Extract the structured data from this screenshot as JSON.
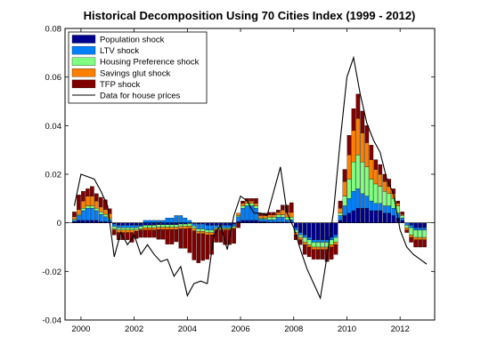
{
  "chart_data": {
    "type": "bar",
    "stacked": true,
    "title": "Historical Decomposition Using 70 Cities Index (1999 - 2012)",
    "xlabel": "",
    "ylabel": "",
    "xlim": [
      1999.4,
      2013.3
    ],
    "ylim": [
      -0.04,
      0.08
    ],
    "xticks": [
      2000,
      2002,
      2004,
      2006,
      2008,
      2010,
      2012
    ],
    "xtick_labels": [
      "2000",
      "2002",
      "2004",
      "2006",
      "2008",
      "2010",
      "2012"
    ],
    "yticks": [
      -0.04,
      -0.02,
      0,
      0.02,
      0.04,
      0.06,
      0.08
    ],
    "ytick_labels": [
      "-0.04",
      "-0.02",
      "0",
      "0.02",
      "0.04",
      "0.06",
      "0.08"
    ],
    "legend_position": "top-left",
    "x": [
      1999.75,
      1999.917,
      2000.083,
      2000.25,
      2000.417,
      2000.583,
      2000.75,
      2000.917,
      2001.083,
      2001.25,
      2001.417,
      2001.583,
      2001.75,
      2001.917,
      2002.083,
      2002.25,
      2002.417,
      2002.583,
      2002.75,
      2002.917,
      2003.083,
      2003.25,
      2003.417,
      2003.583,
      2003.75,
      2003.917,
      2004.083,
      2004.25,
      2004.417,
      2004.583,
      2004.75,
      2004.917,
      2005.083,
      2005.25,
      2005.417,
      2005.583,
      2005.75,
      2005.917,
      2006.083,
      2006.25,
      2006.417,
      2006.583,
      2006.75,
      2006.917,
      2007.083,
      2007.25,
      2007.417,
      2007.583,
      2007.75,
      2007.917,
      2008.083,
      2008.25,
      2008.417,
      2008.583,
      2008.75,
      2008.917,
      2009.083,
      2009.25,
      2009.417,
      2009.583,
      2009.75,
      2009.917,
      2010.083,
      2010.25,
      2010.417,
      2010.583,
      2010.75,
      2010.917,
      2011.083,
      2011.25,
      2011.417,
      2011.583,
      2011.75,
      2011.917,
      2012.083,
      2012.25,
      2012.417,
      2012.583,
      2012.75,
      2012.917
    ],
    "series": [
      {
        "name": "Population shock",
        "color": "#00008f",
        "values": [
          0.0005,
          0.001,
          0.001,
          0.001,
          0.001,
          0.001,
          0.0005,
          0.0005,
          0.0003,
          -0.0005,
          -0.001,
          -0.001,
          -0.001,
          -0.001,
          -0.001,
          -0.001,
          -0.001,
          -0.001,
          -0.001,
          -0.0008,
          -0.0008,
          -0.0008,
          -0.0008,
          -0.0008,
          -0.0005,
          -0.0005,
          -0.0003,
          -0.0003,
          -0.0005,
          -0.0005,
          -0.001,
          -0.001,
          -0.001,
          -0.001,
          -0.001,
          -0.001,
          -0.0005,
          0.0005,
          0.001,
          0.001,
          0.001,
          0.001,
          0.0005,
          0.0005,
          0.0003,
          0.0003,
          0.0003,
          0.0003,
          0.0003,
          0.0003,
          -0.002,
          -0.004,
          -0.005,
          -0.006,
          -0.007,
          -0.007,
          -0.007,
          -0.007,
          -0.006,
          -0.005,
          0.001,
          0.003,
          0.004,
          0.005,
          0.006,
          0.006,
          0.006,
          0.005,
          0.005,
          0.005,
          0.004,
          0.004,
          0.003,
          0.002,
          0.001,
          0,
          -0.001,
          -0.002,
          -0.002,
          -0.002
        ]
      },
      {
        "name": "LTV shock",
        "color": "#0080ff",
        "values": [
          0.0005,
          0.002,
          0.004,
          0.005,
          0.005,
          0.004,
          0.003,
          0.002,
          0.001,
          -0.001,
          -0.001,
          -0.001,
          -0.001,
          -0.001,
          -0.001,
          -0.0005,
          0.001,
          0.001,
          0.001,
          0.001,
          0.001,
          0.002,
          0.002,
          0.003,
          0.003,
          0.002,
          0.001,
          -0.001,
          -0.002,
          -0.002,
          -0.002,
          -0.002,
          -0.001,
          -0.001,
          -0.001,
          -0.001,
          -0.001,
          0.002,
          0.005,
          0.006,
          0.006,
          0.005,
          0.001,
          0.001,
          0.001,
          0.001,
          0.002,
          0.002,
          0.001,
          0.001,
          -0.001,
          -0.001,
          -0.001,
          -0.001,
          -0.001,
          -0.001,
          -0.001,
          -0.001,
          -0.001,
          -0.001,
          0.002,
          0.004,
          0.006,
          0.008,
          0.008,
          0.006,
          0.005,
          0.004,
          0.003,
          0.003,
          0.003,
          0.003,
          0.003,
          0.002,
          0.001,
          -0.001,
          -0.001,
          -0.001,
          -0.001,
          -0.001
        ]
      },
      {
        "name": "Housing Preference shock",
        "color": "#80ff80",
        "values": [
          0.0005,
          0.0005,
          0.001,
          0.001,
          0.001,
          0.001,
          0.001,
          0.001,
          0.0005,
          -0.001,
          -0.001,
          -0.001,
          -0.001,
          -0.001,
          -0.001,
          -0.001,
          -0.001,
          -0.001,
          -0.001,
          -0.001,
          -0.001,
          -0.001,
          -0.001,
          -0.001,
          -0.001,
          -0.001,
          -0.001,
          -0.001,
          -0.001,
          -0.001,
          -0.001,
          -0.001,
          -0.0005,
          -0.0005,
          -0.0005,
          -0.0005,
          -0.0005,
          0.0005,
          0.001,
          0.001,
          0.001,
          0.001,
          0.0005,
          0.0005,
          0.001,
          0.001,
          0.001,
          0.001,
          0.001,
          0.001,
          -0.001,
          -0.001,
          -0.002,
          -0.002,
          -0.002,
          -0.002,
          -0.002,
          -0.002,
          -0.002,
          -0.002,
          0.001,
          0.004,
          0.008,
          0.012,
          0.014,
          0.013,
          0.012,
          0.009,
          0.008,
          0.007,
          0.006,
          0.005,
          0.004,
          0.003,
          0.001,
          -0.001,
          -0.003,
          -0.003,
          -0.003,
          -0.003
        ]
      },
      {
        "name": "Savings glut shock",
        "color": "#ff7f00",
        "values": [
          0.001,
          0.002,
          0.003,
          0.004,
          0.004,
          0.003,
          0.002,
          0.002,
          0.002,
          -0.0005,
          -0.001,
          -0.001,
          -0.001,
          -0.001,
          -0.0005,
          -0.0005,
          -0.001,
          -0.001,
          -0.001,
          -0.001,
          -0.001,
          -0.001,
          -0.001,
          -0.001,
          -0.001,
          -0.001,
          -0.001,
          -0.001,
          -0.001,
          -0.001,
          -0.001,
          -0.001,
          -0.0005,
          -0.0005,
          -0.0005,
          -0.0005,
          -0.0005,
          0.001,
          0.001,
          0.001,
          0.001,
          0.001,
          0.001,
          0.001,
          0.001,
          0.001,
          0.001,
          0.002,
          0.002,
          0.002,
          -0.001,
          -0.001,
          -0.001,
          -0.001,
          -0.001,
          -0.001,
          -0.001,
          -0.001,
          -0.001,
          -0.001,
          0.002,
          0.006,
          0.01,
          0.013,
          0.015,
          0.012,
          0.01,
          0.008,
          0.006,
          0.005,
          0.004,
          0.003,
          0.002,
          0.001,
          0.0005,
          -0.001,
          -0.001,
          -0.001,
          -0.001,
          -0.001
        ]
      },
      {
        "name": "TFP shock",
        "color": "#800000",
        "values": [
          0.002,
          0.006,
          0.004,
          0.003,
          0.004,
          0.003,
          0.004,
          0.004,
          0.002,
          -0.002,
          -0.003,
          -0.003,
          -0.003,
          -0.004,
          -0.003,
          -0.003,
          -0.003,
          -0.003,
          -0.003,
          -0.004,
          -0.004,
          -0.006,
          -0.006,
          -0.005,
          -0.008,
          -0.008,
          -0.01,
          -0.012,
          -0.012,
          -0.011,
          -0.01,
          -0.008,
          -0.005,
          -0.005,
          -0.006,
          -0.006,
          -0.006,
          -0.002,
          0.001,
          0.001,
          0.001,
          0.002,
          0.001,
          0.001,
          0.001,
          0.001,
          0.001,
          0.002,
          0.003,
          0.004,
          -0.002,
          -0.002,
          -0.004,
          -0.004,
          -0.004,
          -0.004,
          -0.004,
          -0.005,
          -0.005,
          -0.004,
          0.003,
          0.005,
          0.008,
          0.009,
          0.01,
          0.009,
          0.007,
          0.006,
          0.004,
          0.004,
          0.003,
          0.003,
          0.002,
          0.001,
          0.001,
          -0.001,
          -0.002,
          -0.003,
          -0.003,
          -0.003
        ]
      },
      {
        "name": "Data for house prices",
        "type": "line",
        "color": "#000000",
        "x": [
          1999.75,
          2000.0,
          2000.25,
          2000.5,
          2000.75,
          2001.0,
          2001.25,
          2001.5,
          2001.75,
          2002.0,
          2002.25,
          2002.5,
          2002.75,
          2003.0,
          2003.25,
          2003.5,
          2003.75,
          2004.0,
          2004.25,
          2004.5,
          2004.75,
          2005.0,
          2005.25,
          2005.5,
          2005.75,
          2006.0,
          2006.25,
          2006.5,
          2006.75,
          2007.0,
          2007.25,
          2007.5,
          2007.75,
          2008.0,
          2008.25,
          2008.5,
          2008.75,
          2009.0,
          2009.25,
          2009.5,
          2009.75,
          2010.0,
          2010.25,
          2010.5,
          2010.75,
          2011.0,
          2011.25,
          2011.5,
          2011.75,
          2012.0,
          2012.25,
          2012.5,
          2012.75,
          2013.0
        ],
        "values": [
          0.007,
          0.02,
          0.019,
          0.018,
          0.013,
          0.007,
          -0.014,
          -0.004,
          -0.009,
          -0.005,
          -0.013,
          -0.009,
          -0.013,
          -0.016,
          -0.015,
          -0.022,
          -0.018,
          -0.03,
          -0.025,
          -0.024,
          -0.025,
          -0.005,
          -0.001,
          -0.011,
          0.003,
          0.011,
          0.009,
          0.004,
          0.004,
          0.003,
          0.013,
          0.023,
          0.004,
          -0.002,
          -0.011,
          -0.019,
          -0.025,
          -0.031,
          -0.014,
          0.005,
          0.034,
          0.06,
          0.068,
          0.053,
          0.041,
          0.034,
          0.029,
          0.018,
          0.012,
          -0.003,
          -0.01,
          -0.013,
          -0.015,
          -0.017
        ]
      }
    ]
  }
}
